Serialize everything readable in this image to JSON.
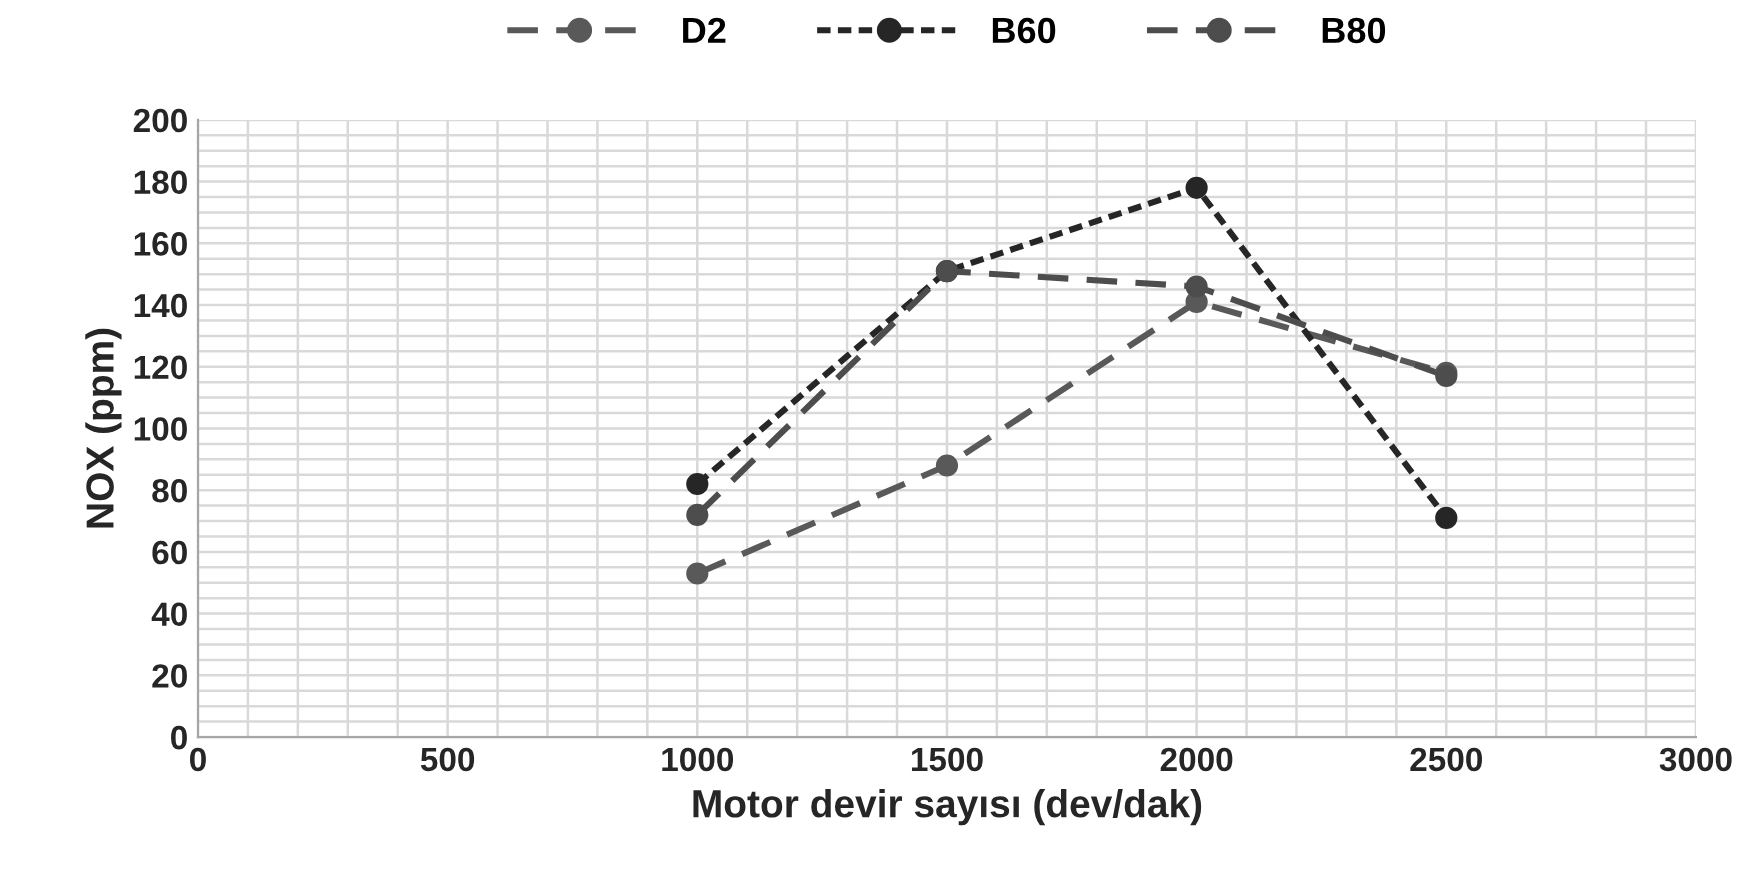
{
  "chart_data": {
    "type": "line",
    "xlabel": "Motor devir sayısı (dev/dak)",
    "ylabel": "NOX (ppm)",
    "x": [
      1000,
      1500,
      2000,
      2500
    ],
    "series": [
      {
        "name": "D2",
        "color": "#595959",
        "line_style": "dashed",
        "values": [
          53,
          88,
          141,
          118
        ]
      },
      {
        "name": "B60",
        "color": "#262626",
        "line_style": "dotted",
        "values": [
          82,
          151,
          178,
          71
        ]
      },
      {
        "name": "B80",
        "color": "#4d4d4d",
        "line_style": "dashed",
        "values": [
          72,
          151,
          146,
          117
        ]
      }
    ],
    "xlim": [
      0,
      3000
    ],
    "xticks": [
      0,
      500,
      1000,
      1500,
      2000,
      2500,
      3000
    ],
    "ylim": [
      0,
      200
    ],
    "yticks": [
      0,
      20,
      40,
      60,
      80,
      100,
      120,
      140,
      160,
      180,
      200
    ],
    "grid": true,
    "legend": "top",
    "marker": "circle"
  }
}
